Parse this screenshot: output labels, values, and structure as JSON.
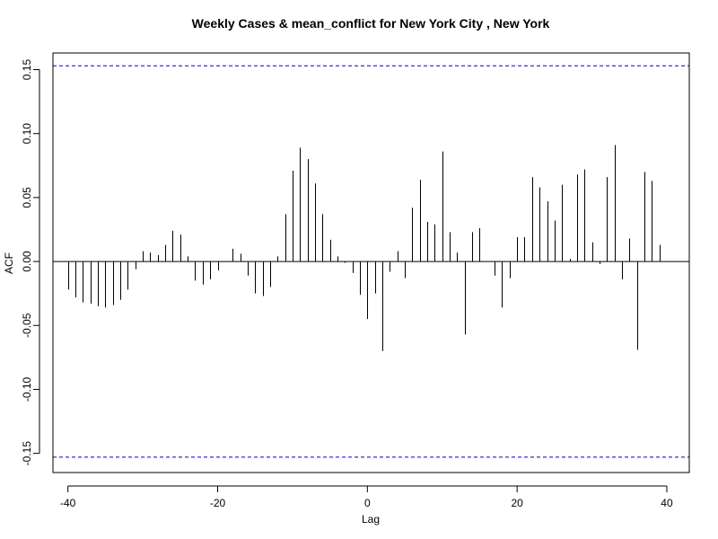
{
  "chart_data": {
    "type": "bar",
    "title": "Weekly Cases & mean_conflict for New York City , New York",
    "xlabel": "Lag",
    "ylabel": "ACF",
    "xlim": [
      -42,
      43
    ],
    "ylim": [
      -0.165,
      0.163
    ],
    "x_ticks": [
      -40,
      -20,
      0,
      20,
      40
    ],
    "y_ticks": [
      -0.15,
      -0.1,
      -0.05,
      0.0,
      0.05,
      0.1,
      0.15
    ],
    "x_tick_labels": [
      "-40",
      "-20",
      "0",
      "20",
      "40"
    ],
    "y_tick_labels": [
      "-0.15",
      "-0.10",
      "-0.05",
      "0.00",
      "0.05",
      "0.10",
      "0.15"
    ],
    "confidence_bound": 0.153,
    "confidence_color": "#0000cc",
    "lags": [
      -40,
      -39,
      -38,
      -37,
      -36,
      -35,
      -34,
      -33,
      -32,
      -31,
      -30,
      -29,
      -28,
      -27,
      -26,
      -25,
      -24,
      -23,
      -22,
      -21,
      -20,
      -19,
      -18,
      -17,
      -16,
      -15,
      -14,
      -13,
      -12,
      -11,
      -10,
      -9,
      -8,
      -7,
      -6,
      -5,
      -4,
      -3,
      -2,
      -1,
      0,
      1,
      2,
      3,
      4,
      5,
      6,
      7,
      8,
      9,
      10,
      11,
      12,
      13,
      14,
      15,
      16,
      17,
      18,
      19,
      20,
      21,
      22,
      23,
      24,
      25,
      26,
      27,
      28,
      29,
      30,
      31,
      32,
      33,
      34,
      35,
      36,
      37,
      38,
      39
    ],
    "values": [
      -0.022,
      -0.028,
      -0.032,
      -0.033,
      -0.035,
      -0.036,
      -0.034,
      -0.03,
      -0.022,
      -0.006,
      0.008,
      0.007,
      0.005,
      0.013,
      0.024,
      0.021,
      0.004,
      -0.015,
      -0.018,
      -0.014,
      -0.007,
      0.0,
      0.01,
      0.006,
      -0.011,
      -0.025,
      -0.027,
      -0.02,
      0.004,
      0.037,
      0.071,
      0.089,
      0.08,
      0.061,
      0.037,
      0.017,
      0.004,
      -0.001,
      -0.009,
      -0.026,
      -0.045,
      -0.025,
      -0.07,
      -0.008,
      0.008,
      -0.013,
      0.042,
      0.064,
      0.031,
      0.029,
      0.086,
      0.023,
      0.007,
      -0.057,
      0.023,
      0.026,
      0.0,
      -0.011,
      -0.036,
      -0.013,
      0.019,
      0.019,
      0.066,
      0.058,
      0.047,
      0.032,
      0.06,
      0.002,
      0.068,
      0.072,
      0.015,
      -0.002,
      0.066,
      0.091,
      -0.014,
      0.018,
      -0.069,
      0.07,
      0.063,
      0.013
    ]
  }
}
